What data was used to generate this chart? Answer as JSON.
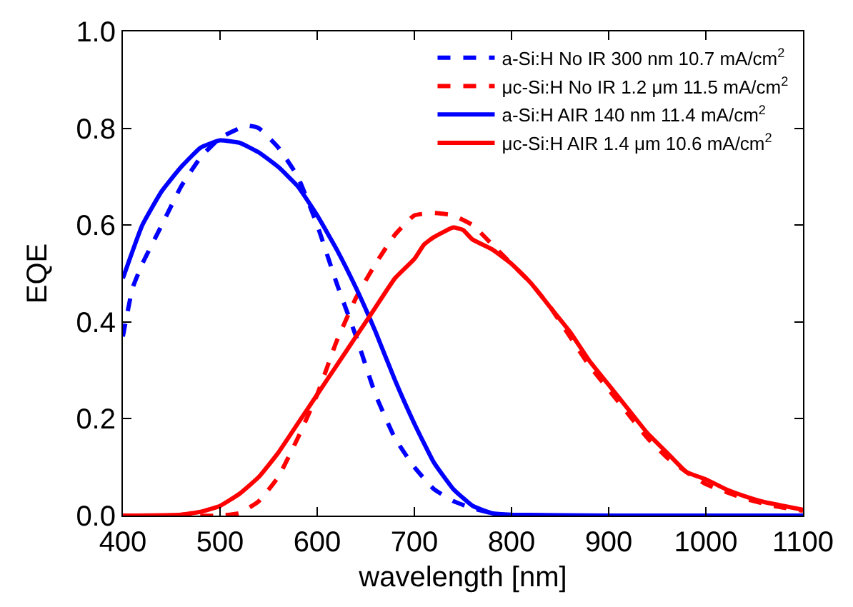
{
  "chart_data": {
    "type": "line",
    "xlabel": "wavelength [nm]",
    "ylabel": "EQE",
    "xlim": [
      400,
      1100
    ],
    "xticks": [
      400,
      500,
      600,
      700,
      800,
      900,
      1000,
      1100
    ],
    "ylim": [
      0,
      1
    ],
    "yticks": [
      {
        "value": 0,
        "label": "0.0"
      },
      0.2,
      0.4,
      0.6,
      0.8,
      {
        "value": 1,
        "label": "1.0"
      }
    ],
    "legend": "top right",
    "marker": "none",
    "series": [
      {
        "name": "a-Si:H No IR 300 nm 10.7 mA/cm$^{2}$",
        "color": "#0000ff",
        "line_style": "dashed",
        "x": [
          400,
          410,
          420,
          440,
          460,
          480,
          500,
          520,
          530,
          540,
          560,
          580,
          600,
          620,
          640,
          660,
          680,
          700,
          720,
          740,
          760,
          780,
          800
        ],
        "values": [
          0.37,
          0.47,
          0.52,
          0.6,
          0.68,
          0.74,
          0.78,
          0.8,
          0.805,
          0.8,
          0.76,
          0.7,
          0.6,
          0.48,
          0.37,
          0.25,
          0.16,
          0.1,
          0.055,
          0.03,
          0.015,
          0.005,
          0
        ]
      },
      {
        "name": "μc-Si:H No IR 1.2 μm 11.5 mA/cm$^{2}$",
        "color": "#ff0000",
        "line_style": "dashed",
        "x": [
          400,
          500,
          520,
          540,
          560,
          580,
          600,
          620,
          640,
          660,
          680,
          700,
          720,
          740,
          760,
          780,
          800,
          820,
          840,
          860,
          880,
          900,
          920,
          940,
          960,
          980,
          1000,
          1040,
          1070,
          1100
        ],
        "values": [
          0,
          0,
          0.005,
          0.03,
          0.08,
          0.16,
          0.25,
          0.36,
          0.45,
          0.52,
          0.58,
          0.62,
          0.625,
          0.62,
          0.6,
          0.56,
          0.52,
          0.48,
          0.43,
          0.37,
          0.31,
          0.26,
          0.21,
          0.16,
          0.12,
          0.09,
          0.065,
          0.035,
          0.02,
          0.01
        ]
      },
      {
        "name": "a-Si:H AIR 140 nm 11.4 mA/cm$^{2}$",
        "color": "#0000ff",
        "line_style": "solid",
        "x": [
          400,
          420,
          440,
          460,
          480,
          500,
          520,
          540,
          560,
          580,
          600,
          620,
          640,
          660,
          680,
          700,
          720,
          740,
          760,
          780,
          800,
          900,
          1100
        ],
        "values": [
          0.49,
          0.6,
          0.67,
          0.72,
          0.76,
          0.775,
          0.77,
          0.75,
          0.72,
          0.68,
          0.62,
          0.55,
          0.47,
          0.38,
          0.28,
          0.19,
          0.11,
          0.055,
          0.02,
          0.005,
          0.002,
          0,
          0
        ]
      },
      {
        "name": "μc-Si:H AIR 1.4 μm 10.6 mA/cm$^{2}$",
        "color": "#ff0000",
        "line_style": "solid",
        "x": [
          400,
          460,
          480,
          500,
          520,
          540,
          560,
          580,
          600,
          620,
          640,
          660,
          680,
          700,
          710,
          720,
          740,
          750,
          760,
          780,
          800,
          820,
          840,
          860,
          880,
          900,
          920,
          940,
          960,
          980,
          1000,
          1020,
          1040,
          1060,
          1080,
          1100
        ],
        "values": [
          0,
          0.002,
          0.008,
          0.02,
          0.045,
          0.08,
          0.13,
          0.19,
          0.25,
          0.31,
          0.37,
          0.43,
          0.49,
          0.53,
          0.56,
          0.575,
          0.595,
          0.59,
          0.57,
          0.55,
          0.52,
          0.48,
          0.43,
          0.38,
          0.32,
          0.27,
          0.22,
          0.17,
          0.13,
          0.09,
          0.075,
          0.055,
          0.04,
          0.028,
          0.02,
          0.012
        ]
      }
    ]
  }
}
